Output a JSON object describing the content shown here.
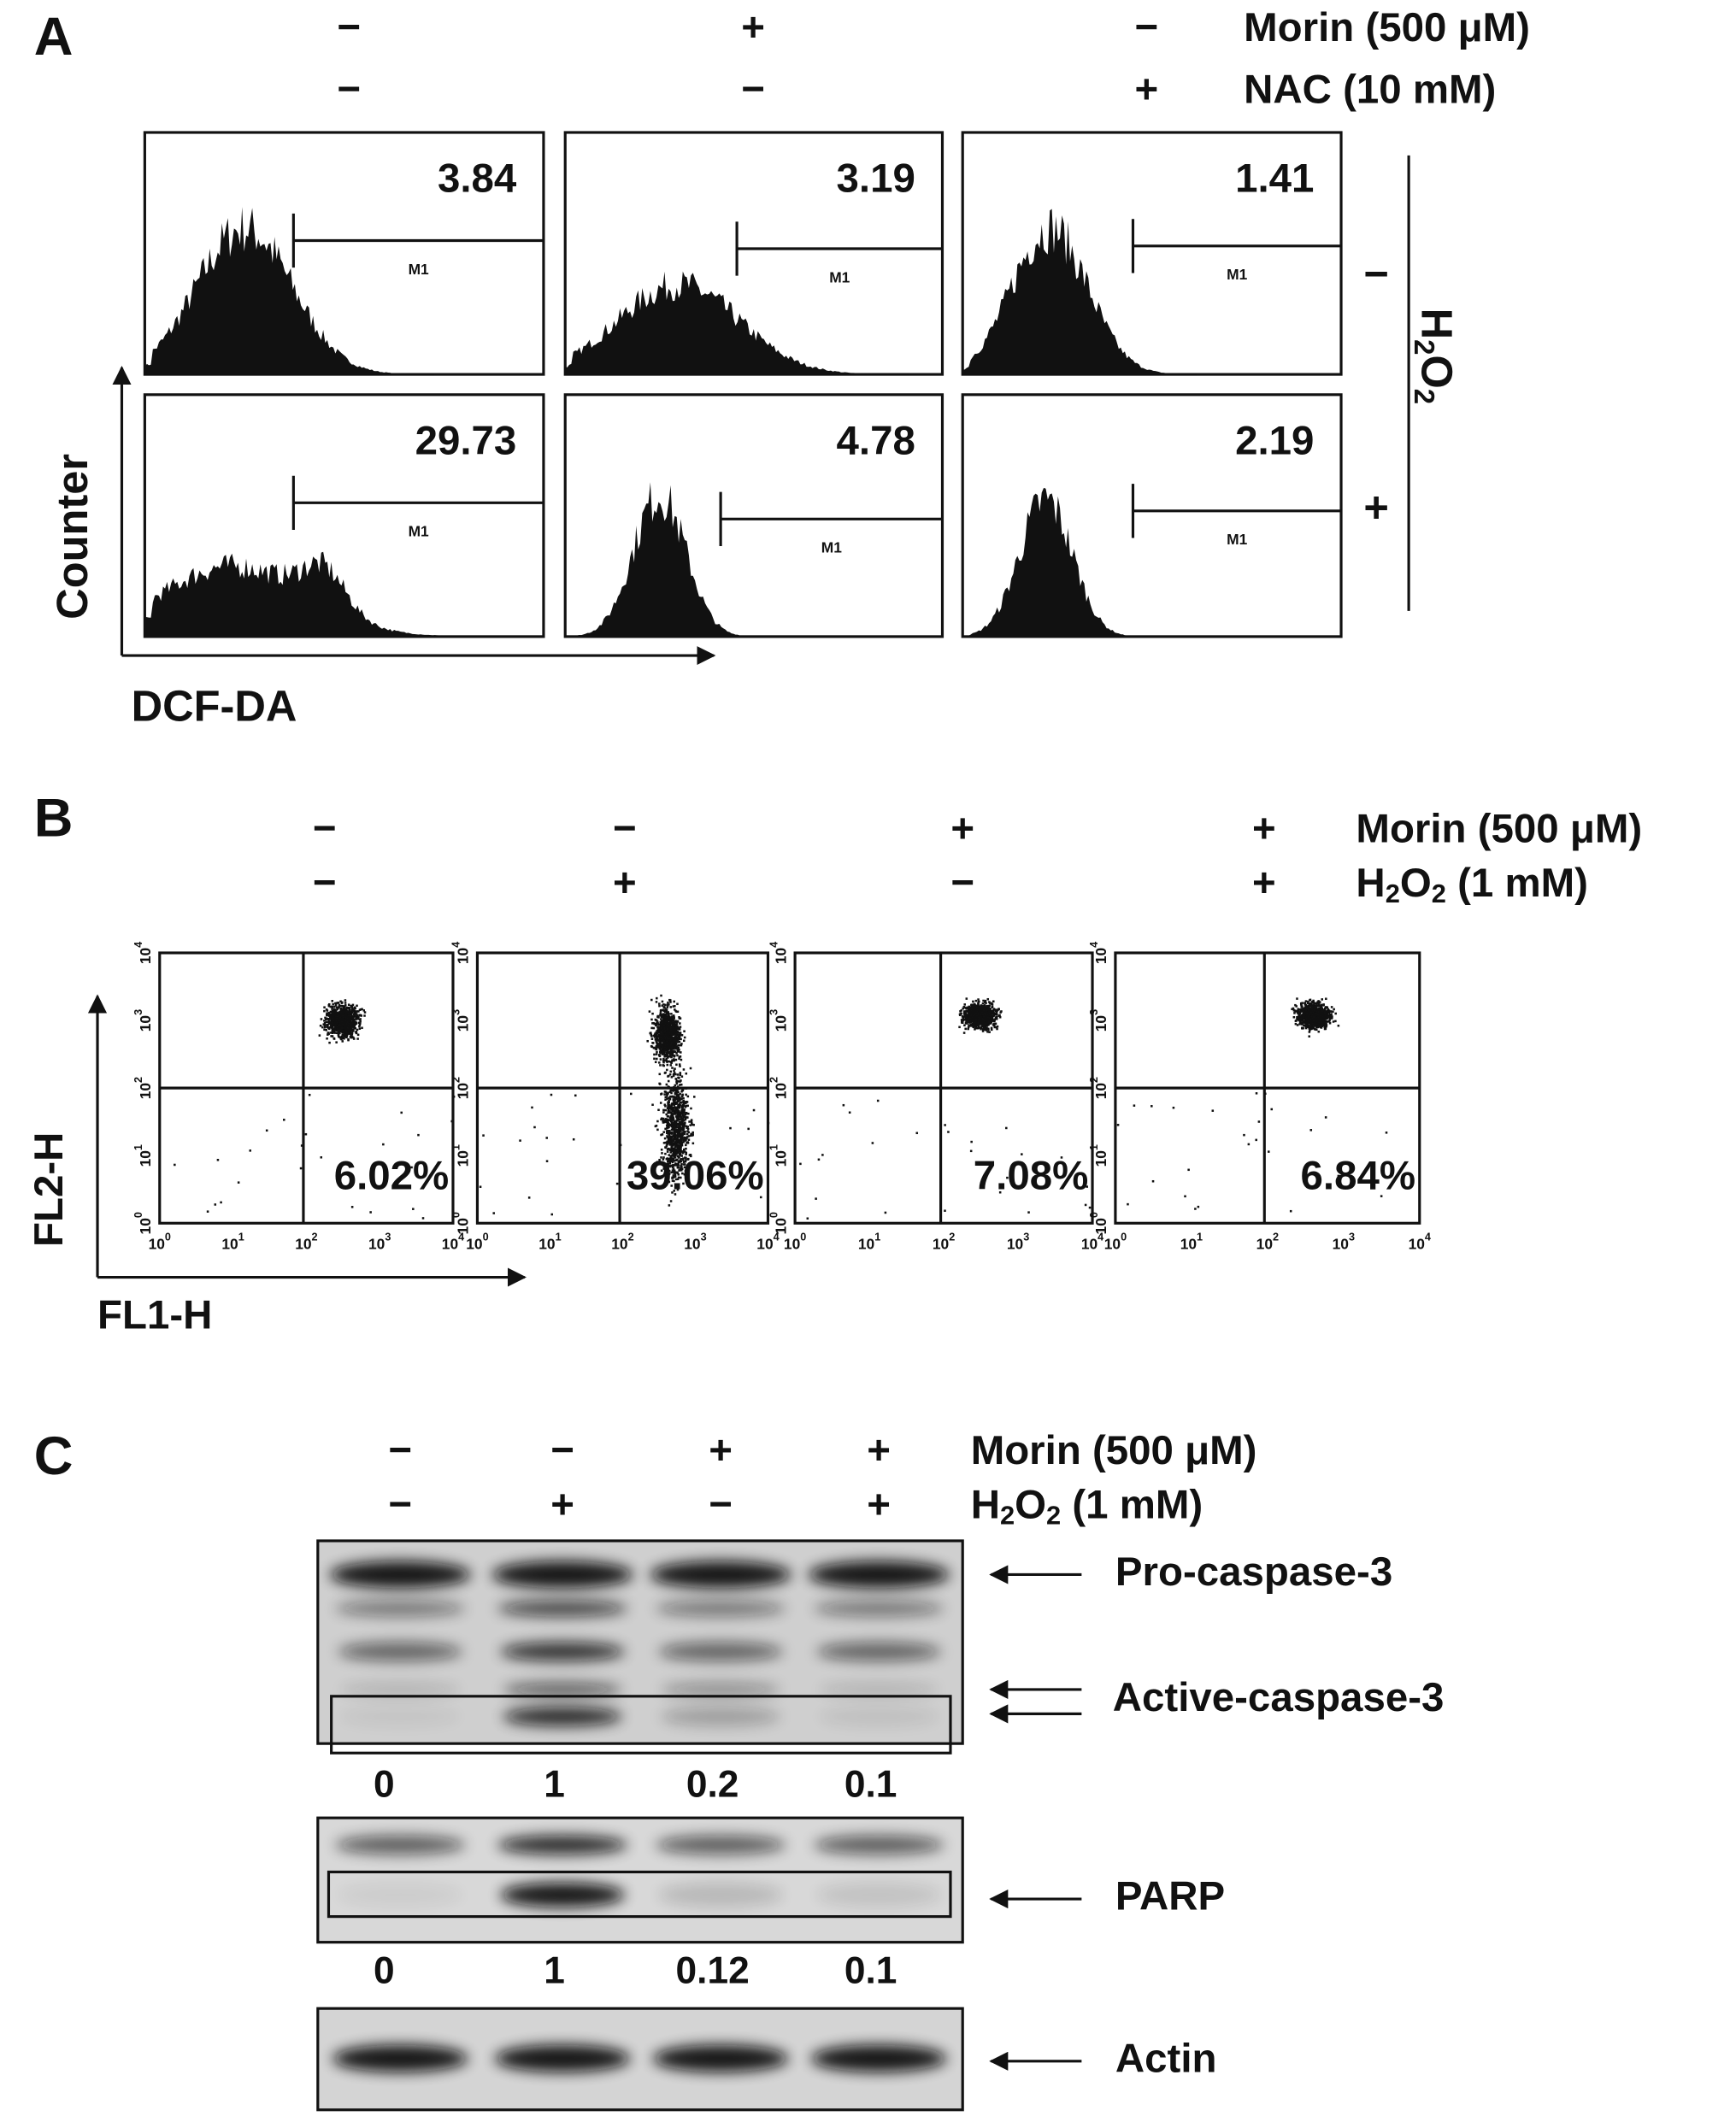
{
  "panel_a": {
    "label": "A",
    "conditions": [
      {
        "name": [
          "Morin (500 μM)"
        ],
        "signs": [
          "−",
          "+",
          "−"
        ]
      },
      {
        "name": [
          "NAC (10 mM)"
        ],
        "signs": [
          "−",
          "−",
          "+"
        ]
      }
    ],
    "row_signs": [
      "−",
      "+"
    ],
    "row_factor": [
      "H",
      "2",
      "O",
      "2"
    ],
    "values": [
      [
        3.84,
        3.19,
        1.41
      ],
      [
        29.73,
        4.78,
        2.19
      ]
    ],
    "gate_label": "M1",
    "y_axis": "Counter",
    "x_axis": "DCF-DA"
  },
  "panel_b": {
    "label": "B",
    "conditions": [
      {
        "name": [
          "Morin (500  μM)"
        ],
        "signs": [
          "−",
          "−",
          "+",
          "+"
        ]
      },
      {
        "name": [
          "H",
          "2",
          "O",
          "2",
          " (1 mM)"
        ],
        "signs": [
          "−",
          "+",
          "−",
          "+"
        ]
      }
    ],
    "percents": [
      "6.02%",
      "39.06%",
      "7.08%",
      "6.84%"
    ],
    "tick_base": "10",
    "tick_exponents": [
      "0",
      "1",
      "2",
      "3",
      "4"
    ],
    "y_axis": "FL2-H",
    "x_axis": "FL1-H"
  },
  "panel_c": {
    "label": "C",
    "conditions": [
      {
        "name": [
          "Morin (500  μM)"
        ],
        "signs": [
          "−",
          "−",
          "+",
          "+"
        ]
      },
      {
        "name": [
          "H",
          "2",
          "O",
          "2",
          " (1 mM)"
        ],
        "signs": [
          "−",
          "+",
          "−",
          "+"
        ]
      }
    ],
    "blots": [
      {
        "labels": [
          "Pro-caspase-3",
          "Active-caspase-3"
        ],
        "quantities": [
          0,
          1,
          0.2,
          0.1
        ]
      },
      {
        "labels": [
          "PARP"
        ],
        "quantities": [
          0,
          1,
          0.12,
          0.1
        ]
      },
      {
        "labels": [
          "Actin"
        ]
      }
    ]
  }
}
